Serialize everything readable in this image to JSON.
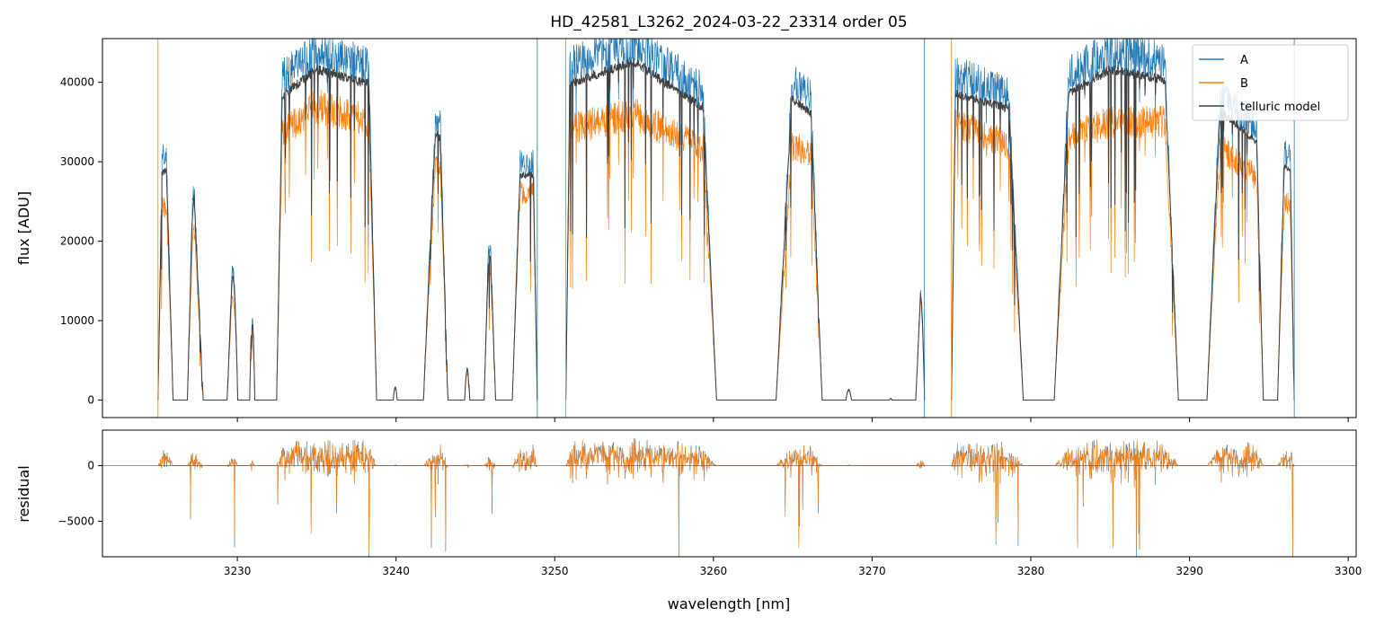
{
  "chart_data": [
    {
      "type": "line",
      "title": "HD_42581_L3262_2024-03-22_23314  order 05",
      "xlabel": "",
      "ylabel": "flux [ADU]",
      "xlim": [
        3221.5,
        3300.5
      ],
      "ylim": [
        -2200,
        45500
      ],
      "grid": false,
      "legend_position": "top-right",
      "x_ticks": [
        3230,
        3240,
        3250,
        3260,
        3270,
        3280,
        3290,
        3300
      ],
      "y_ticks": [
        0,
        10000,
        20000,
        30000,
        40000
      ],
      "y_tick_labels": [
        "0",
        "10000",
        "20000",
        "30000",
        "40000"
      ],
      "segments": [
        {
          "x_start": 3225.0,
          "x_end": 3248.9
        },
        {
          "x_start": 3250.7,
          "x_end": 3273.3
        },
        {
          "x_start": 3275.0,
          "x_end": 3296.6
        }
      ],
      "series": [
        {
          "name": "A",
          "color": "#1f77b4",
          "continuum": [
            [
              3225.0,
              30000
            ],
            [
              3230.0,
              36000
            ],
            [
              3235.0,
              44000
            ],
            [
              3240.0,
              41000
            ],
            [
              3245.0,
              30000
            ],
            [
              3248.9,
              30000
            ],
            [
              3250.7,
              42000
            ],
            [
              3255.0,
              45000
            ],
            [
              3260.0,
              38000
            ],
            [
              3265.0,
              40000
            ],
            [
              3270.0,
              32000
            ],
            [
              3273.3,
              33000
            ],
            [
              3275.0,
              41000
            ],
            [
              3280.0,
              38000
            ],
            [
              3285.0,
              44000
            ],
            [
              3290.0,
              42000
            ],
            [
              3296.6,
              30000
            ]
          ]
        },
        {
          "name": "B",
          "color": "#ff7f0e",
          "continuum": [
            [
              3225.0,
              24000
            ],
            [
              3230.0,
              29000
            ],
            [
              3235.0,
              37000
            ],
            [
              3240.0,
              34000
            ],
            [
              3245.0,
              26000
            ],
            [
              3248.9,
              26000
            ],
            [
              3250.7,
              34000
            ],
            [
              3255.0,
              36000
            ],
            [
              3260.0,
              31000
            ],
            [
              3265.0,
              32000
            ],
            [
              3270.0,
              28000
            ],
            [
              3273.3,
              29000
            ],
            [
              3275.0,
              35000
            ],
            [
              3280.0,
              31000
            ],
            [
              3285.0,
              35000
            ],
            [
              3290.0,
              35000
            ],
            [
              3296.6,
              24000
            ]
          ]
        },
        {
          "name": "telluric model",
          "color": "#404040"
        }
      ],
      "absorption_bands": [
        [
          3226.4,
          0.6
        ],
        [
          3228.6,
          1.0
        ],
        [
          3230.4,
          0.5
        ],
        [
          3231.4,
          0.4
        ],
        [
          3232.1,
          0.5
        ],
        [
          3239.3,
          0.7
        ],
        [
          3240.9,
          1.1
        ],
        [
          3243.8,
          0.7
        ],
        [
          3245.1,
          0.6
        ],
        [
          3246.8,
          0.7
        ],
        [
          3261.1,
          1.2
        ],
        [
          3262.9,
          1.4
        ],
        [
          3267.6,
          1.0
        ],
        [
          3269.9,
          1.6
        ],
        [
          3272.0,
          1.0
        ],
        [
          3280.5,
          1.3
        ],
        [
          3290.2,
          1.2
        ],
        [
          3295.1,
          0.6
        ]
      ]
    },
    {
      "type": "line",
      "title": "",
      "xlabel": "wavelength [nm]",
      "ylabel": "residual",
      "xlim": [
        3221.5,
        3300.5
      ],
      "ylim": [
        -8200,
        3200
      ],
      "grid": false,
      "x_ticks": [
        3230,
        3240,
        3250,
        3260,
        3270,
        3280,
        3290,
        3300
      ],
      "x_tick_labels": [
        "3230",
        "3240",
        "3250",
        "3260",
        "3270",
        "3280",
        "3290",
        "3300"
      ],
      "y_ticks": [
        -5000,
        0
      ],
      "y_tick_labels": [
        "−5000",
        "0"
      ],
      "reference_line": 0,
      "series": [
        {
          "name": "A",
          "color": "#1f77b4"
        },
        {
          "name": "B",
          "color": "#ff7f0e"
        }
      ]
    }
  ]
}
